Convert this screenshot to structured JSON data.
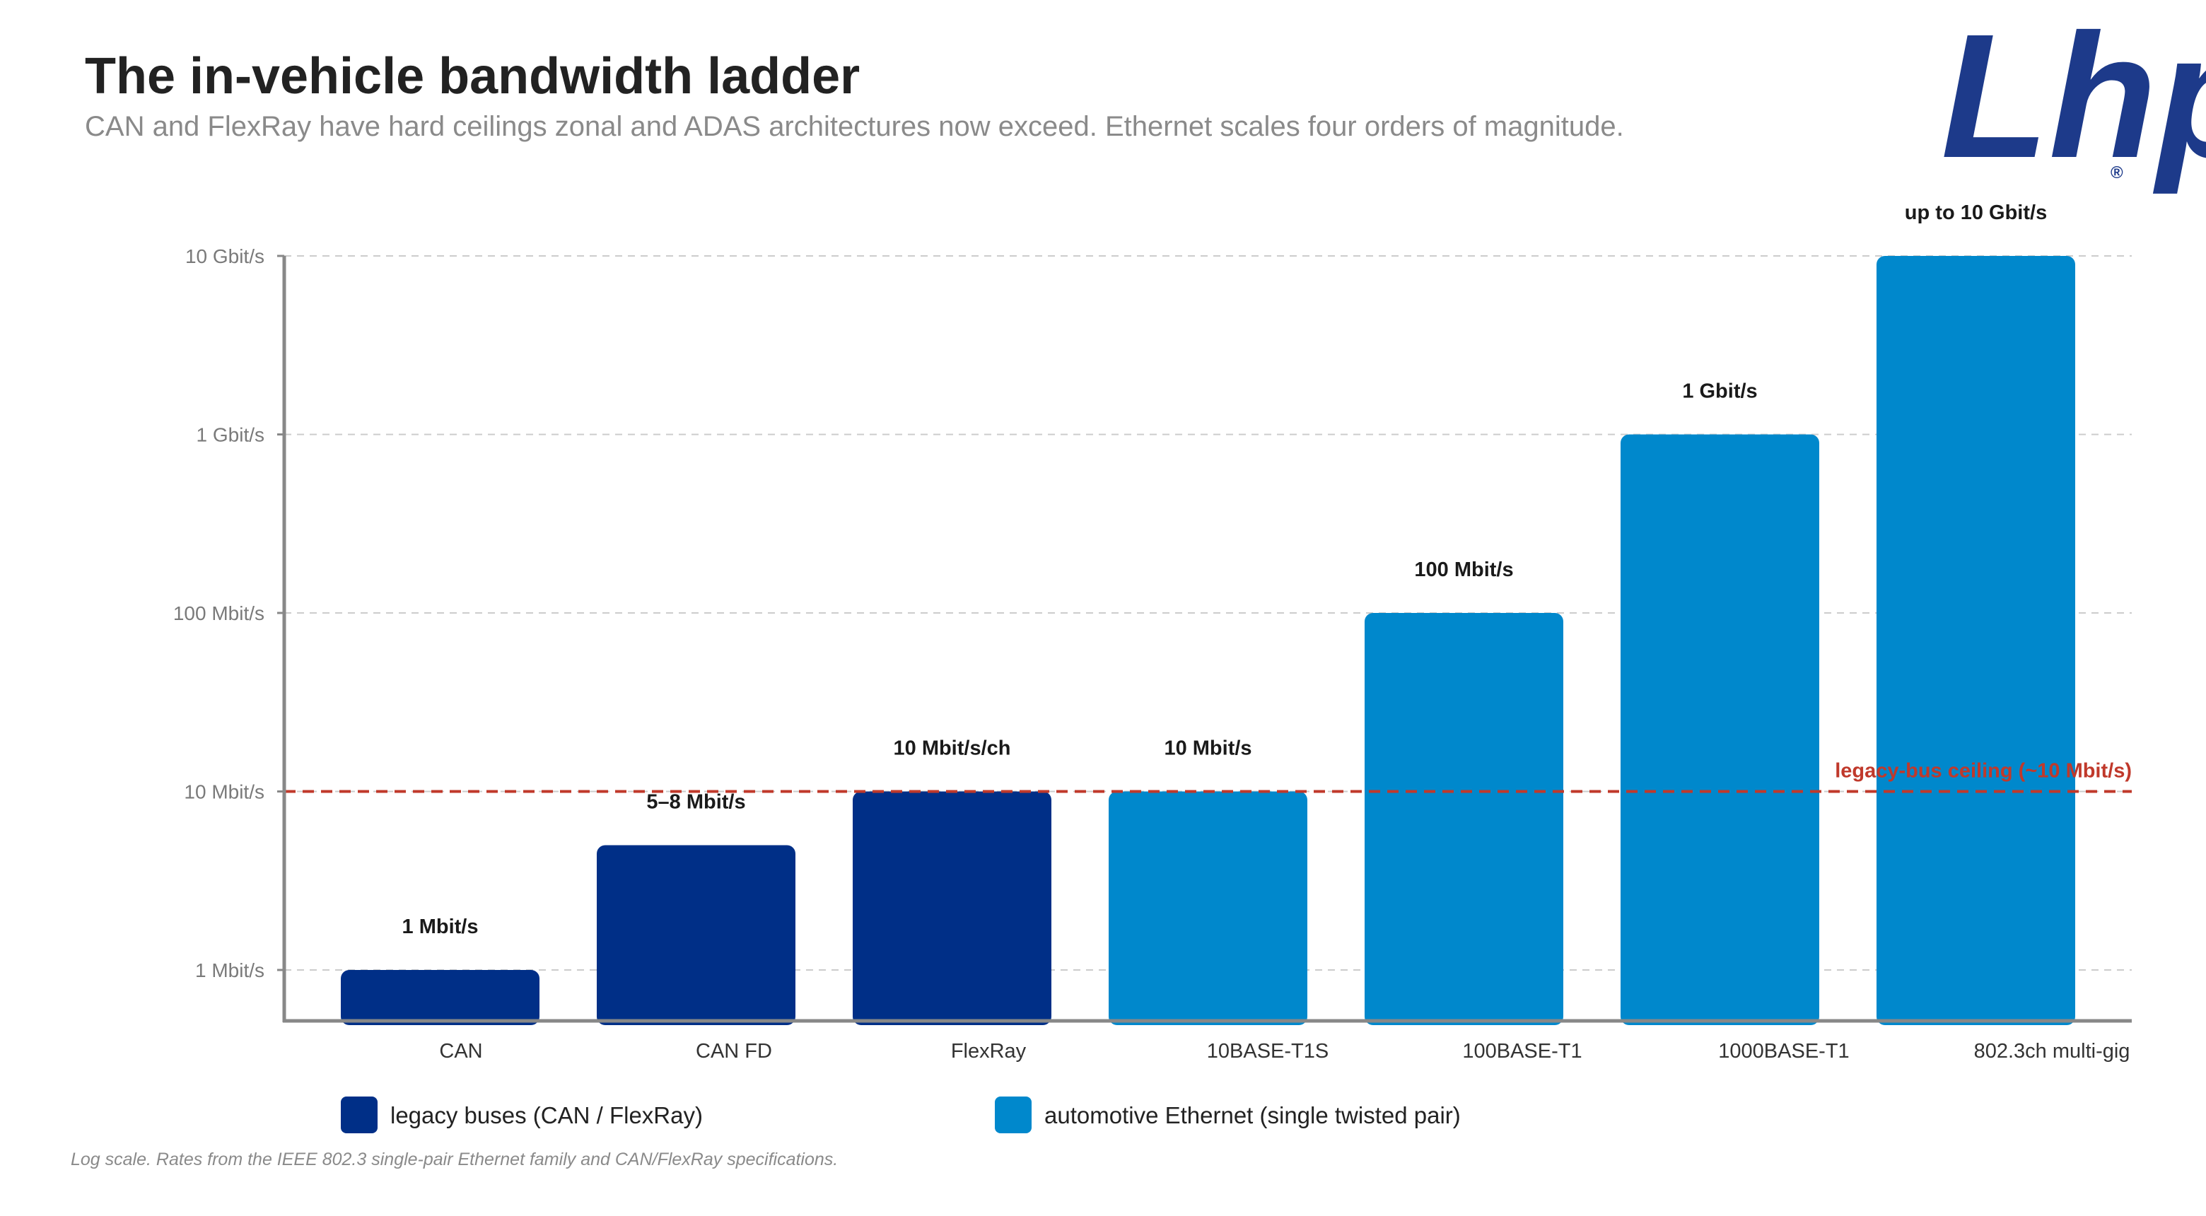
{
  "header": {
    "title": "The in-vehicle bandwidth ladder",
    "subtitle": "CAN and FlexRay have hard ceilings zonal and ADAS architectures now exceed. Ethernet scales four orders of magnitude."
  },
  "logo": {
    "text": "Lhp",
    "registered": "®",
    "color": "#1d3a8a"
  },
  "footnote": "Log scale. Rates from the IEEE 802.3 single-pair Ethernet family and CAN/FlexRay specifications.",
  "colors": {
    "legacy": "#002f87",
    "ethernet": "#0088cc",
    "ceiling": "#c0392b",
    "grid": "#cccccc",
    "axis": "#888888"
  },
  "chart_data": {
    "type": "bar",
    "y_scale": "log",
    "y_unit": "Mbit/s",
    "ylim": [
      0.5,
      10000
    ],
    "y_ticks": [
      {
        "value": 1,
        "label": "1 Mbit/s"
      },
      {
        "value": 10,
        "label": "10 Mbit/s"
      },
      {
        "value": 100,
        "label": "100 Mbit/s"
      },
      {
        "value": 1000,
        "label": "1 Gbit/s"
      },
      {
        "value": 10000,
        "label": "10 Gbit/s"
      }
    ],
    "grid": true,
    "categories": [
      "CAN",
      "CAN FD",
      "FlexRay",
      "10BASE-T1S",
      "100BASE-T1",
      "1000BASE-T1",
      "802.3ch multi-gig"
    ],
    "values": [
      1,
      5,
      10,
      10,
      100,
      1000,
      10000
    ],
    "value_labels": [
      "1 Mbit/s",
      "5–8 Mbit/s",
      "10 Mbit/s/ch",
      "10 Mbit/s",
      "100 Mbit/s",
      "1 Gbit/s",
      "up to 10 Gbit/s"
    ],
    "groups": [
      "legacy",
      "legacy",
      "legacy",
      "ethernet",
      "ethernet",
      "ethernet",
      "ethernet"
    ],
    "reference_line": {
      "value": 10,
      "label": "legacy-bus ceiling (~10 Mbit/s)"
    },
    "legend": {
      "placement": "bottom",
      "items": [
        {
          "group": "legacy",
          "label": "legacy buses (CAN / FlexRay)"
        },
        {
          "group": "ethernet",
          "label": "automotive Ethernet (single twisted pair)"
        }
      ]
    }
  }
}
